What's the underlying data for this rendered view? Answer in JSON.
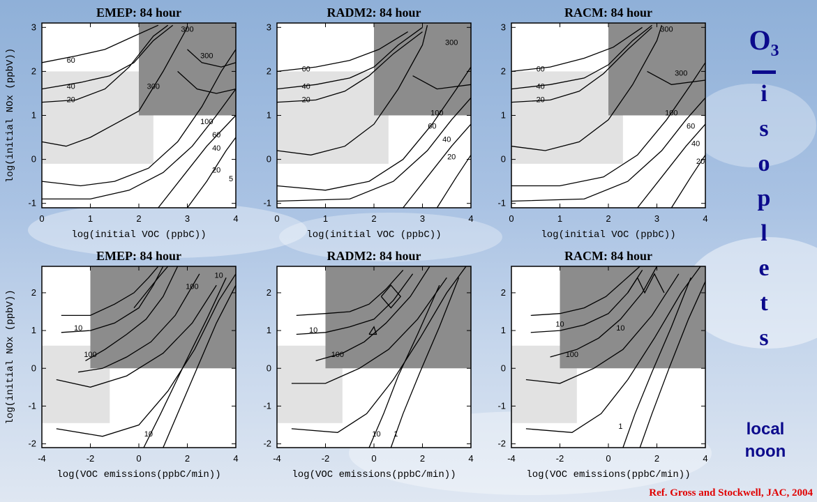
{
  "side_title": {
    "species": "O",
    "subscript": "3",
    "letters": [
      "i",
      "s",
      "o",
      "p",
      "l",
      "e",
      "t",
      "s"
    ],
    "note_line1": "local",
    "note_line2": "noon"
  },
  "reference": "Ref. Gross and Stockwell, JAC, 2004",
  "colors": {
    "regime_dark": "#8c8c8c",
    "regime_light": "#e2e2e2",
    "plot_bg": "#ffffff",
    "title_blue": "#0b0a8c",
    "reference_red": "#e00000"
  },
  "chart_data": [
    {
      "type": "contour",
      "title": "EMEP:    84 hour",
      "xlabel": "log(initial VOC (ppbC))",
      "ylabel": "log(initial NOx (ppbV))",
      "xlim": [
        0,
        4
      ],
      "ylim": [
        -1.1,
        3.1
      ],
      "xticks": [
        0,
        1,
        2,
        3,
        4
      ],
      "yticks": [
        -1,
        0,
        1,
        2,
        3
      ],
      "regions": [
        {
          "shade": "light",
          "x": [
            0,
            2.3
          ],
          "y": [
            -0.1,
            2.0
          ]
        },
        {
          "shade": "dark",
          "x": [
            2.0,
            4
          ],
          "y": [
            1.0,
            3.1
          ]
        }
      ],
      "contour_labels": [
        "20",
        "40",
        "60",
        "300",
        "300",
        "300",
        "100",
        "60",
        "40",
        "20",
        "5"
      ]
    },
    {
      "type": "contour",
      "title": "RADM2:    84 hour",
      "xlabel": "log(initial VOC (ppbC))",
      "ylabel": "",
      "xlim": [
        0,
        4
      ],
      "ylim": [
        -1.1,
        3.1
      ],
      "xticks": [
        0,
        1,
        2,
        3,
        4
      ],
      "yticks": [
        -1,
        0,
        1,
        2,
        3
      ],
      "regions": [
        {
          "shade": "light",
          "x": [
            0,
            2.3
          ],
          "y": [
            -0.1,
            2.0
          ]
        },
        {
          "shade": "dark",
          "x": [
            2.0,
            4
          ],
          "y": [
            1.0,
            3.1
          ]
        }
      ],
      "contour_labels": [
        "20",
        "40",
        "60",
        "300",
        "100",
        "60",
        "40",
        "20"
      ]
    },
    {
      "type": "contour",
      "title": "RACM:    84 hour",
      "xlabel": "log(initial VOC (ppbC))",
      "ylabel": "",
      "xlim": [
        0,
        4
      ],
      "ylim": [
        -1.1,
        3.1
      ],
      "xticks": [
        0,
        1,
        2,
        3,
        4
      ],
      "yticks": [
        -1,
        0,
        1,
        2,
        3
      ],
      "regions": [
        {
          "shade": "light",
          "x": [
            0,
            2.3
          ],
          "y": [
            -0.1,
            2.0
          ]
        },
        {
          "shade": "dark",
          "x": [
            2.0,
            4
          ],
          "y": [
            1.0,
            3.1
          ]
        }
      ],
      "contour_labels": [
        "20",
        "40",
        "60",
        "300",
        "300",
        "100",
        "60",
        "40",
        "20"
      ]
    },
    {
      "type": "contour",
      "title": "EMEP:    84 hour",
      "xlabel": "log(VOC   emissions(ppbC/min))",
      "ylabel": "log(initial NOx (ppbV))",
      "xlim": [
        -4,
        4
      ],
      "ylim": [
        -2.1,
        2.7
      ],
      "xticks": [
        -4,
        -2,
        0,
        2,
        4
      ],
      "yticks": [
        -2,
        -1,
        0,
        1,
        2
      ],
      "regions": [
        {
          "shade": "light",
          "x": [
            -4,
            -1.2
          ],
          "y": [
            -1.45,
            0.6
          ]
        },
        {
          "shade": "dark",
          "x": [
            -2,
            4
          ],
          "y": [
            0,
            2.7
          ]
        }
      ],
      "contour_labels": [
        "10",
        "100",
        "10",
        "100",
        "10"
      ]
    },
    {
      "type": "contour",
      "title": "RADM2:    84 hour",
      "xlabel": "log(VOC   emissions(ppbC/min))",
      "ylabel": "",
      "xlim": [
        -4,
        4
      ],
      "ylim": [
        -2.1,
        2.7
      ],
      "xticks": [
        -4,
        -2,
        0,
        2,
        4
      ],
      "yticks": [
        -2,
        -1,
        0,
        1,
        2
      ],
      "regions": [
        {
          "shade": "light",
          "x": [
            -4,
            -1.3
          ],
          "y": [
            -1.45,
            0.6
          ]
        },
        {
          "shade": "dark",
          "x": [
            -2,
            4
          ],
          "y": [
            0,
            2.7
          ]
        }
      ],
      "contour_labels": [
        "10",
        "100",
        "10",
        "1"
      ]
    },
    {
      "type": "contour",
      "title": "RACM:    84 hour",
      "xlabel": "log(VOC   emissions(ppbC/min))",
      "ylabel": "",
      "xlim": [
        -4,
        4
      ],
      "ylim": [
        -2.1,
        2.7
      ],
      "xticks": [
        -4,
        -2,
        0,
        2,
        4
      ],
      "yticks": [
        -2,
        -1,
        0,
        1,
        2
      ],
      "regions": [
        {
          "shade": "light",
          "x": [
            -4,
            -1.3
          ],
          "y": [
            -1.45,
            0.6
          ]
        },
        {
          "shade": "dark",
          "x": [
            -2,
            4
          ],
          "y": [
            0,
            2.7
          ]
        }
      ],
      "contour_labels": [
        "10",
        "100",
        "10",
        "1"
      ]
    }
  ]
}
